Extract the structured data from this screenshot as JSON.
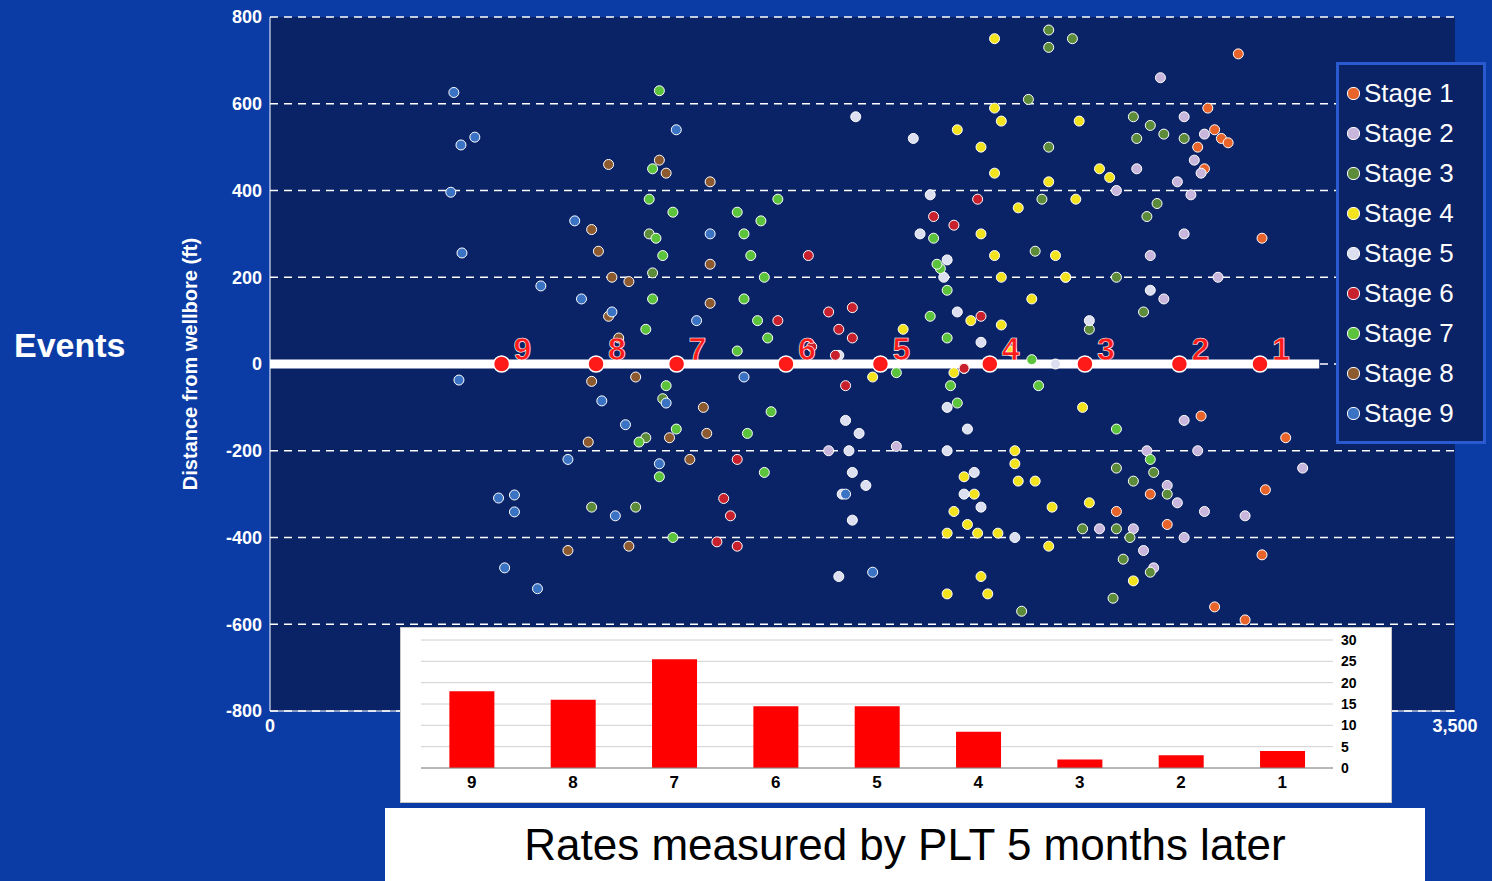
{
  "chart_data": [
    {
      "type": "scatter",
      "title": "Events",
      "y_label": "Distance from wellbore (ft)",
      "xlim": [
        0,
        3500
      ],
      "xticks": [
        0,
        {
          "value": 3500,
          "label": "3,500"
        }
      ],
      "ylim": [
        -800,
        800
      ],
      "yticks": [
        -800,
        -600,
        -400,
        -200,
        0,
        200,
        400,
        600,
        800
      ],
      "grid": true,
      "legend": "upper right",
      "series": [
        {
          "name": "Stage 1",
          "color": "#e8642a",
          "x": [
            2770,
            2790,
            2810,
            2830,
            2860,
            2760,
            2740,
            2790,
            2880,
            2930,
            2940,
            2930,
            3000,
            2600,
            2650,
            2750,
            2500
          ],
          "values": [
            590,
            540,
            520,
            510,
            715,
            450,
            500,
            -560,
            -590,
            290,
            -290,
            -440,
            -170,
            -300,
            -370,
            -120,
            -340
          ]
        },
        {
          "name": "Stage 2",
          "color": "#c8b6dc",
          "x": [
            2630,
            2700,
            2730,
            2760,
            2750,
            2680,
            2720,
            2500,
            2560,
            2600,
            2640,
            2700,
            2650,
            2680,
            2580,
            2610,
            2700,
            2450,
            2550,
            2590,
            2740,
            2760,
            2880,
            3050,
            2800,
            2700,
            1850,
            1650
          ],
          "values": [
            660,
            570,
            470,
            530,
            440,
            420,
            390,
            400,
            450,
            250,
            150,
            300,
            -280,
            -320,
            -430,
            -470,
            -400,
            -380,
            -380,
            -200,
            -200,
            -340,
            -350,
            -240,
            200,
            -130,
            -190,
            -200
          ]
        },
        {
          "name": "Stage 3",
          "color": "#5c8c3a",
          "x": [
            2240,
            2300,
            2300,
            2370,
            2300,
            2280,
            2260,
            2350,
            2420,
            2550,
            2560,
            2600,
            2640,
            2620,
            2590,
            2500,
            2580,
            2700,
            2500,
            2550,
            2610,
            2520,
            2500,
            2540,
            2600,
            2400,
            2220,
            2650,
            2490,
            1120,
            1130,
            1160,
            1110,
            950,
            1080
          ],
          "values": [
            610,
            770,
            730,
            750,
            500,
            380,
            260,
            200,
            80,
            570,
            520,
            550,
            530,
            370,
            340,
            200,
            120,
            520,
            -240,
            -270,
            -250,
            -450,
            -380,
            -400,
            -480,
            -380,
            -570,
            -300,
            -540,
            300,
            210,
            -80,
            -170,
            -330,
            -330
          ]
        },
        {
          "name": "Stage 4",
          "color": "#f2e31e",
          "x": [
            2140,
            2210,
            2000,
            2020,
            2060,
            2090,
            2080,
            2050,
            2000,
            2100,
            2120,
            2150,
            2030,
            2100,
            2140,
            2160,
            2140,
            2100,
            2140,
            2160,
            2160,
            2070,
            2020,
            2190,
            2200,
            2210,
            2250,
            2300,
            2320,
            2350,
            2380,
            2390,
            2400,
            2420,
            2550,
            2300,
            2050,
            2450,
            2480,
            2200,
            2260,
            2310,
            1870,
            1780
          ],
          "values": [
            750,
            360,
            -390,
            -340,
            -370,
            -390,
            -300,
            -260,
            -530,
            -490,
            -530,
            -390,
            540,
            500,
            590,
            560,
            440,
            300,
            250,
            200,
            90,
            100,
            -20,
            30,
            -230,
            -270,
            150,
            420,
            250,
            200,
            380,
            560,
            -100,
            -320,
            -500,
            -420,
            -10,
            450,
            430,
            -200,
            -270,
            -330,
            80,
            -30
          ]
        },
        {
          "name": "Stage 5",
          "color": "#dcdff0",
          "x": [
            1730,
            1900,
            1690,
            1710,
            1720,
            1760,
            1680,
            1720,
            1700,
            1740,
            1680,
            1950,
            2000,
            2030,
            1990,
            2060,
            2000,
            2050,
            2080,
            2000,
            1920,
            2100,
            2100,
            2420,
            2320,
            2600,
            2200
          ],
          "values": [
            570,
            520,
            -300,
            -200,
            -250,
            -280,
            -490,
            -360,
            -130,
            -160,
            20,
            390,
            240,
            120,
            200,
            -150,
            -200,
            -300,
            -250,
            -100,
            300,
            -330,
            50,
            100,
            0,
            170,
            -400
          ]
        },
        {
          "name": "Stage 6",
          "color": "#c8202c",
          "x": [
            1340,
            1360,
            1380,
            1320,
            1380,
            1590,
            1650,
            1680,
            1670,
            1720,
            1700,
            1600,
            1960,
            2020,
            2090,
            2050,
            2100,
            1500,
            1720
          ],
          "values": [
            -310,
            -350,
            -420,
            -410,
            -220,
            250,
            120,
            80,
            20,
            60,
            -50,
            40,
            340,
            320,
            380,
            -10,
            110,
            100,
            130
          ]
        },
        {
          "name": "Stage 7",
          "color": "#5cc43c",
          "x": [
            1150,
            1130,
            1120,
            1140,
            1160,
            1190,
            1130,
            1110,
            1170,
            1200,
            1150,
            1190,
            1090,
            1380,
            1400,
            1450,
            1420,
            1460,
            1400,
            1440,
            1470,
            1380,
            1500,
            1480,
            1410,
            1460,
            1960,
            1980,
            2000,
            1950,
            2000,
            2010,
            2030,
            1970,
            1850,
            2270,
            2500,
            2600,
            2250
          ],
          "values": [
            630,
            450,
            380,
            290,
            250,
            350,
            150,
            80,
            -50,
            -150,
            -260,
            -400,
            -180,
            350,
            300,
            330,
            250,
            200,
            150,
            100,
            60,
            30,
            380,
            -110,
            -160,
            -250,
            290,
            220,
            170,
            110,
            60,
            -50,
            -90,
            230,
            -20,
            -50,
            -150,
            -220,
            10
          ]
        },
        {
          "name": "Stage 8",
          "color": "#8c5a2e",
          "x": [
            950,
            970,
            1010,
            1000,
            1060,
            1030,
            950,
            1080,
            940,
            880,
            1060,
            1000,
            1300,
            1300,
            1300,
            1240,
            1180,
            1280,
            1290,
            1150,
            1170
          ],
          "values": [
            310,
            260,
            200,
            110,
            190,
            60,
            -40,
            -30,
            -180,
            -430,
            -420,
            460,
            420,
            230,
            140,
            -220,
            -170,
            -100,
            -160,
            470,
            440
          ]
        },
        {
          "name": "Stage 9",
          "color": "#3a72c4",
          "x": [
            543,
            564,
            605,
            534,
            567,
            558,
            675,
            722,
            722,
            693,
            790,
            800,
            900,
            920,
            1010,
            980,
            1050,
            1020,
            880,
            1170,
            1150,
            1300,
            1200,
            1260,
            1400,
            1700,
            1780
          ],
          "values": [
            626,
            505,
            523,
            396,
            256,
            -37,
            -309,
            -302,
            -341,
            -470,
            -518,
            180,
            330,
            150,
            120,
            -85,
            -140,
            -350,
            -220,
            -90,
            -230,
            300,
            540,
            100,
            -30,
            -300,
            -480
          ]
        }
      ],
      "annotations": [
        {
          "text": "9",
          "x": 684,
          "y": 0
        },
        {
          "text": "8",
          "x": 963,
          "y": 0
        },
        {
          "text": "7",
          "x": 1201,
          "y": 0
        },
        {
          "text": "6",
          "x": 1524,
          "y": 0
        },
        {
          "text": "5",
          "x": 1803,
          "y": 0
        },
        {
          "text": "4",
          "x": 2126,
          "y": 0
        },
        {
          "text": "3",
          "x": 2407,
          "y": 0
        },
        {
          "text": "2",
          "x": 2686,
          "y": 0
        },
        {
          "text": "1",
          "x": 2924,
          "y": 0
        }
      ]
    },
    {
      "type": "bar",
      "title": "Rates measured by PLT 5 months later",
      "categories": [
        "9",
        "8",
        "7",
        "6",
        "5",
        "4",
        "3",
        "2",
        "1"
      ],
      "values": [
        18,
        16,
        25.5,
        14.5,
        14.5,
        8.5,
        2,
        3,
        4
      ],
      "color": "#ff0000",
      "ylim": [
        0,
        30
      ],
      "yticks": [
        0,
        5,
        10,
        15,
        20,
        25,
        30
      ],
      "grid": true
    }
  ]
}
